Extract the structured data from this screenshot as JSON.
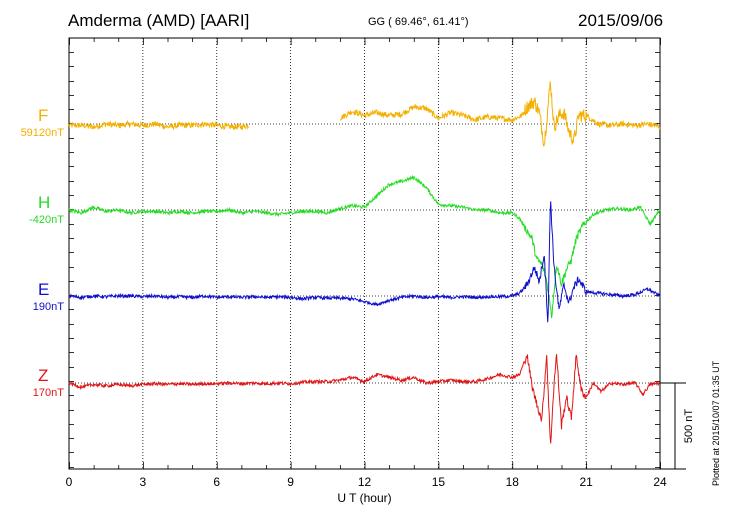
{
  "header": {
    "station": "Amderma (AMD)  [AARI]",
    "coords": "GG ( 69.46°,  61.41°)",
    "date": "2015/09/06"
  },
  "footer": {
    "plotted": "Plotted at 2015/10/07 01:35 UT"
  },
  "colors": {
    "F": "#f4b000",
    "H": "#22dd22",
    "E": "#1010cc",
    "Z": "#e01515"
  },
  "chart_data": {
    "type": "line",
    "xlabel": "U T (hour)",
    "xlim": [
      0,
      24
    ],
    "xticks": [
      "0",
      "3",
      "6",
      "9",
      "12",
      "15",
      "18",
      "21",
      "24"
    ],
    "scale_bar": "500 nT",
    "channels": [
      {
        "name": "F",
        "baseline": "59120nT",
        "color": "#f4b000"
      },
      {
        "name": "H",
        "baseline": "-420nT",
        "color": "#22dd22"
      },
      {
        "name": "E",
        "baseline": "190nT",
        "color": "#1010cc"
      },
      {
        "name": "Z",
        "baseline": "170nT",
        "color": "#e01515"
      }
    ],
    "series": [
      {
        "name": "F",
        "gaps": [
          [
            7.3,
            11.0
          ]
        ],
        "values": [
          [
            0,
            -10
          ],
          [
            0.5,
            -10
          ],
          [
            1,
            -20
          ],
          [
            1.5,
            0
          ],
          [
            2,
            -10
          ],
          [
            2.5,
            0
          ],
          [
            3,
            -10
          ],
          [
            3.5,
            0
          ],
          [
            4,
            -20
          ],
          [
            4.5,
            -10
          ],
          [
            5,
            -10
          ],
          [
            5.5,
            0
          ],
          [
            6,
            -10
          ],
          [
            6.5,
            -20
          ],
          [
            7,
            -20
          ],
          [
            7.3,
            -10
          ],
          [
            11,
            40
          ],
          [
            11.5,
            90
          ],
          [
            12,
            60
          ],
          [
            12.5,
            80
          ],
          [
            13,
            60
          ],
          [
            13.5,
            70
          ],
          [
            14,
            120
          ],
          [
            14.5,
            110
          ],
          [
            15,
            40
          ],
          [
            15.5,
            80
          ],
          [
            16,
            60
          ],
          [
            16.5,
            30
          ],
          [
            17,
            50
          ],
          [
            17.5,
            40
          ],
          [
            18,
            30
          ],
          [
            18.4,
            60
          ],
          [
            18.6,
            120
          ],
          [
            18.9,
            160
          ],
          [
            19.1,
            80
          ],
          [
            19.3,
            -140
          ],
          [
            19.45,
            120
          ],
          [
            19.55,
            300
          ],
          [
            19.7,
            -20
          ],
          [
            19.9,
            60
          ],
          [
            20.1,
            80
          ],
          [
            20.3,
            -50
          ],
          [
            20.5,
            -120
          ],
          [
            20.7,
            60
          ],
          [
            21,
            60
          ],
          [
            21.5,
            0
          ],
          [
            22,
            -10
          ],
          [
            22.5,
            0
          ],
          [
            23,
            -10
          ],
          [
            23.5,
            0
          ],
          [
            24,
            -20
          ]
        ]
      },
      {
        "name": "H",
        "values": [
          [
            0,
            0
          ],
          [
            0.5,
            -20
          ],
          [
            1,
            20
          ],
          [
            1.5,
            -10
          ],
          [
            2,
            0
          ],
          [
            2.5,
            -20
          ],
          [
            3,
            -10
          ],
          [
            3.5,
            -10
          ],
          [
            4,
            -20
          ],
          [
            4.5,
            -10
          ],
          [
            5,
            -20
          ],
          [
            5.5,
            -10
          ],
          [
            6,
            -10
          ],
          [
            6.5,
            0
          ],
          [
            7,
            -20
          ],
          [
            7.5,
            -10
          ],
          [
            8,
            -20
          ],
          [
            8.5,
            -30
          ],
          [
            9,
            -20
          ],
          [
            9.5,
            -10
          ],
          [
            10,
            -10
          ],
          [
            10.5,
            -20
          ],
          [
            11,
            10
          ],
          [
            11.5,
            30
          ],
          [
            12,
            20
          ],
          [
            12.5,
            100
          ],
          [
            13,
            180
          ],
          [
            13.5,
            200
          ],
          [
            14,
            230
          ],
          [
            14.5,
            160
          ],
          [
            15,
            40
          ],
          [
            15.5,
            30
          ],
          [
            16,
            20
          ],
          [
            16.5,
            0
          ],
          [
            17,
            0
          ],
          [
            17.5,
            -20
          ],
          [
            18,
            -20
          ],
          [
            18.3,
            -60
          ],
          [
            18.5,
            -120
          ],
          [
            18.8,
            -200
          ],
          [
            19.0,
            -350
          ],
          [
            19.2,
            -380
          ],
          [
            19.4,
            -500
          ],
          [
            19.6,
            -750
          ],
          [
            19.8,
            -380
          ],
          [
            20.0,
            -520
          ],
          [
            20.2,
            -420
          ],
          [
            20.4,
            -350
          ],
          [
            20.6,
            -200
          ],
          [
            20.9,
            -100
          ],
          [
            21.3,
            -30
          ],
          [
            21.8,
            0
          ],
          [
            22.3,
            10
          ],
          [
            22.8,
            0
          ],
          [
            23.2,
            20
          ],
          [
            23.6,
            -100
          ],
          [
            24,
            0
          ]
        ]
      },
      {
        "name": "E",
        "values": [
          [
            0,
            0
          ],
          [
            0.5,
            -10
          ],
          [
            1,
            0
          ],
          [
            1.5,
            -5
          ],
          [
            2,
            0
          ],
          [
            2.5,
            0
          ],
          [
            3,
            -5
          ],
          [
            3.5,
            0
          ],
          [
            4,
            -10
          ],
          [
            4.5,
            -5
          ],
          [
            5,
            -10
          ],
          [
            5.5,
            0
          ],
          [
            6,
            -10
          ],
          [
            6.5,
            -5
          ],
          [
            7,
            -10
          ],
          [
            7.5,
            -5
          ],
          [
            8,
            -10
          ],
          [
            8.5,
            -5
          ],
          [
            9,
            -10
          ],
          [
            9.5,
            -20
          ],
          [
            10,
            -10
          ],
          [
            10.5,
            -15
          ],
          [
            11,
            -15
          ],
          [
            11.5,
            -20
          ],
          [
            12,
            -40
          ],
          [
            12.5,
            -60
          ],
          [
            13,
            -30
          ],
          [
            13.5,
            -10
          ],
          [
            14,
            0
          ],
          [
            14.5,
            -10
          ],
          [
            15,
            -5
          ],
          [
            15.5,
            -10
          ],
          [
            16,
            -5
          ],
          [
            16.5,
            -10
          ],
          [
            17,
            -5
          ],
          [
            17.5,
            -5
          ],
          [
            18,
            0
          ],
          [
            18.3,
            20
          ],
          [
            18.6,
            80
          ],
          [
            18.9,
            200
          ],
          [
            19.1,
            100
          ],
          [
            19.3,
            300
          ],
          [
            19.45,
            -200
          ],
          [
            19.55,
            700
          ],
          [
            19.7,
            200
          ],
          [
            19.9,
            -100
          ],
          [
            20.1,
            80
          ],
          [
            20.3,
            -50
          ],
          [
            20.5,
            60
          ],
          [
            20.7,
            120
          ],
          [
            21,
            30
          ],
          [
            21.5,
            20
          ],
          [
            22,
            10
          ],
          [
            22.5,
            0
          ],
          [
            23,
            10
          ],
          [
            23.5,
            50
          ],
          [
            24,
            0
          ]
        ]
      },
      {
        "name": "Z",
        "values": [
          [
            0,
            0
          ],
          [
            0.5,
            -30
          ],
          [
            1,
            -10
          ],
          [
            1.5,
            -20
          ],
          [
            2,
            -10
          ],
          [
            2.5,
            -20
          ],
          [
            3,
            -10
          ],
          [
            3.5,
            -5
          ],
          [
            4,
            -10
          ],
          [
            4.5,
            -5
          ],
          [
            5,
            -10
          ],
          [
            5.5,
            -5
          ],
          [
            6,
            -5
          ],
          [
            6.5,
            0
          ],
          [
            7,
            -5
          ],
          [
            7.5,
            0
          ],
          [
            8,
            -5
          ],
          [
            8.5,
            0
          ],
          [
            9,
            -5
          ],
          [
            9.5,
            5
          ],
          [
            10,
            10
          ],
          [
            10.5,
            10
          ],
          [
            11,
            20
          ],
          [
            11.5,
            40
          ],
          [
            12,
            10
          ],
          [
            12.5,
            60
          ],
          [
            13,
            40
          ],
          [
            13.5,
            20
          ],
          [
            14,
            40
          ],
          [
            14.5,
            0
          ],
          [
            15,
            10
          ],
          [
            15.5,
            20
          ],
          [
            16,
            10
          ],
          [
            16.5,
            10
          ],
          [
            17,
            30
          ],
          [
            17.5,
            60
          ],
          [
            18,
            40
          ],
          [
            18.3,
            60
          ],
          [
            18.6,
            200
          ],
          [
            18.8,
            -20
          ],
          [
            19.0,
            -150
          ],
          [
            19.2,
            -260
          ],
          [
            19.4,
            200
          ],
          [
            19.55,
            -450
          ],
          [
            19.7,
            0
          ],
          [
            19.8,
            200
          ],
          [
            20.0,
            -300
          ],
          [
            20.2,
            -100
          ],
          [
            20.4,
            -250
          ],
          [
            20.6,
            200
          ],
          [
            20.8,
            -50
          ],
          [
            21.0,
            -100
          ],
          [
            21.3,
            0
          ],
          [
            21.6,
            -60
          ],
          [
            22,
            0
          ],
          [
            22.5,
            -10
          ],
          [
            23,
            0
          ],
          [
            23.3,
            -80
          ],
          [
            23.6,
            -10
          ],
          [
            24,
            0
          ]
        ]
      }
    ]
  }
}
